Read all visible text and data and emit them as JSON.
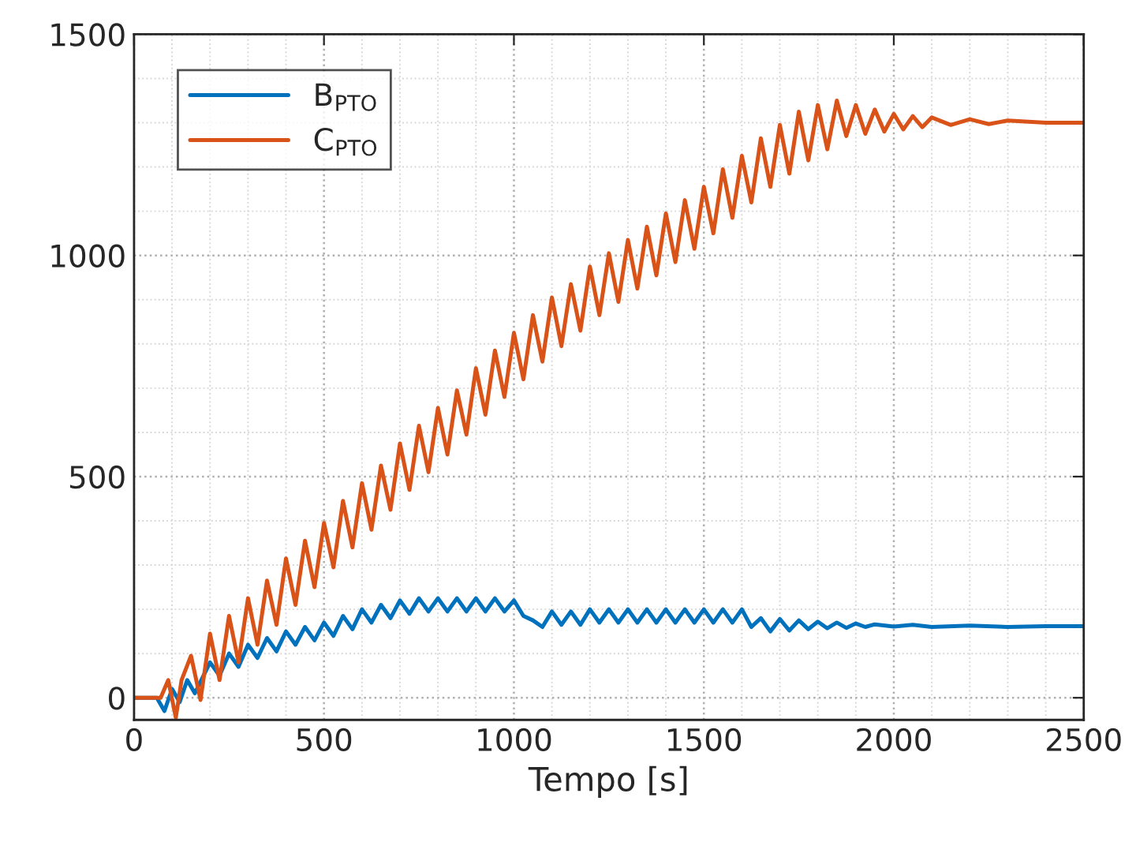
{
  "chart_data": {
    "type": "line",
    "xlabel": "Tempo [s]",
    "xlim": [
      0,
      2500
    ],
    "xticks": [
      0,
      500,
      1000,
      1500,
      2000,
      2500
    ],
    "ylim": [
      -50,
      1500
    ],
    "yticks": [
      0,
      500,
      1000,
      1500
    ],
    "grid": true,
    "legend": "top left",
    "line_style": "solid",
    "marker": "none",
    "series": [
      {
        "name": "B$_{PTO}$",
        "color": "#0072bd",
        "x": [
          0,
          60,
          80,
          100,
          120,
          140,
          160,
          200,
          225,
          250,
          275,
          300,
          325,
          350,
          375,
          400,
          425,
          450,
          475,
          500,
          525,
          550,
          575,
          600,
          625,
          650,
          675,
          700,
          725,
          750,
          775,
          800,
          825,
          850,
          875,
          900,
          925,
          950,
          975,
          1000,
          1025,
          1050,
          1075,
          1100,
          1125,
          1150,
          1175,
          1200,
          1225,
          1250,
          1275,
          1300,
          1325,
          1350,
          1375,
          1400,
          1425,
          1450,
          1475,
          1500,
          1525,
          1550,
          1575,
          1600,
          1625,
          1650,
          1675,
          1700,
          1725,
          1750,
          1775,
          1800,
          1825,
          1850,
          1875,
          1900,
          1925,
          1950,
          2000,
          2050,
          2100,
          2200,
          2300,
          2400,
          2500
        ],
        "values": [
          0,
          0,
          -30,
          20,
          -10,
          40,
          10,
          80,
          50,
          100,
          70,
          120,
          90,
          135,
          105,
          150,
          120,
          160,
          130,
          170,
          140,
          185,
          155,
          200,
          170,
          210,
          180,
          220,
          190,
          225,
          195,
          225,
          195,
          225,
          195,
          225,
          195,
          225,
          195,
          220,
          185,
          175,
          160,
          195,
          165,
          195,
          165,
          200,
          170,
          200,
          170,
          200,
          170,
          200,
          170,
          200,
          170,
          200,
          170,
          200,
          170,
          200,
          170,
          200,
          160,
          180,
          150,
          178,
          152,
          175,
          155,
          172,
          157,
          170,
          158,
          168,
          160,
          166,
          161,
          165,
          160,
          163,
          160,
          162,
          162
        ]
      },
      {
        "name": "C$_{PTO}$",
        "color": "#d95319",
        "x": [
          0,
          70,
          90,
          110,
          125,
          150,
          175,
          200,
          225,
          250,
          275,
          300,
          325,
          350,
          375,
          400,
          425,
          450,
          475,
          500,
          525,
          550,
          575,
          600,
          625,
          650,
          675,
          700,
          725,
          750,
          775,
          800,
          825,
          850,
          875,
          900,
          925,
          950,
          975,
          1000,
          1025,
          1050,
          1075,
          1100,
          1125,
          1150,
          1175,
          1200,
          1225,
          1250,
          1275,
          1300,
          1325,
          1350,
          1375,
          1400,
          1425,
          1450,
          1475,
          1500,
          1525,
          1550,
          1575,
          1600,
          1625,
          1650,
          1675,
          1700,
          1725,
          1750,
          1775,
          1800,
          1825,
          1850,
          1875,
          1900,
          1925,
          1950,
          1975,
          2000,
          2025,
          2050,
          2075,
          2100,
          2150,
          2200,
          2250,
          2300,
          2400,
          2500
        ],
        "values": [
          0,
          0,
          40,
          -45,
          40,
          95,
          -5,
          145,
          40,
          185,
          80,
          225,
          120,
          265,
          165,
          315,
          210,
          355,
          250,
          395,
          295,
          445,
          340,
          485,
          380,
          525,
          425,
          575,
          470,
          615,
          510,
          655,
          550,
          695,
          595,
          745,
          640,
          785,
          680,
          825,
          720,
          865,
          760,
          905,
          795,
          935,
          830,
          975,
          865,
          1005,
          895,
          1035,
          925,
          1065,
          955,
          1095,
          985,
          1125,
          1015,
          1155,
          1050,
          1195,
          1085,
          1225,
          1120,
          1265,
          1155,
          1295,
          1185,
          1325,
          1215,
          1340,
          1240,
          1350,
          1270,
          1340,
          1275,
          1330,
          1280,
          1320,
          1285,
          1315,
          1290,
          1312,
          1295,
          1308,
          1297,
          1305,
          1300,
          1300
        ]
      }
    ]
  }
}
